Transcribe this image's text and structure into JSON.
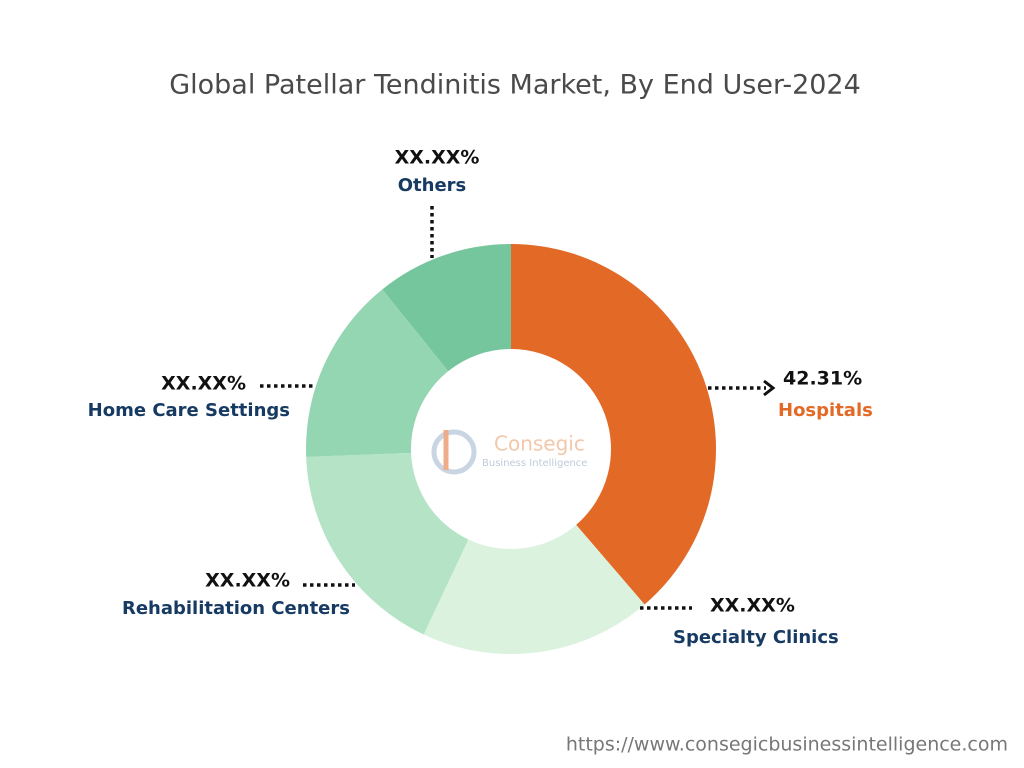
{
  "chart_data": {
    "type": "donut",
    "title": "Global Patellar Tendinitis Market, By End User-2024",
    "categories": [
      "Hospitals",
      "Specialty Clinics",
      "Rehabilitation Centers",
      "Home Care Settings",
      "Others"
    ],
    "values": [
      42.31,
      20,
      19,
      16.2,
      11.8
    ],
    "value_labels": [
      "42.31%",
      "XX.XX%",
      "XX.XX%",
      "XX.XX%",
      "XX.XX%"
    ],
    "colors": [
      "#e36927",
      "#daf2de",
      "#b4e4c5",
      "#93d6b1",
      "#75c69d"
    ],
    "label_colors": [
      "#e36927",
      "#173a63",
      "#173a63",
      "#173a63",
      "#173a63"
    ]
  },
  "watermark": {
    "name": "Consegic",
    "tagline": "Business Intelligence"
  },
  "footer": {
    "url": "https://www.consegicbusinessintelligence.com"
  }
}
